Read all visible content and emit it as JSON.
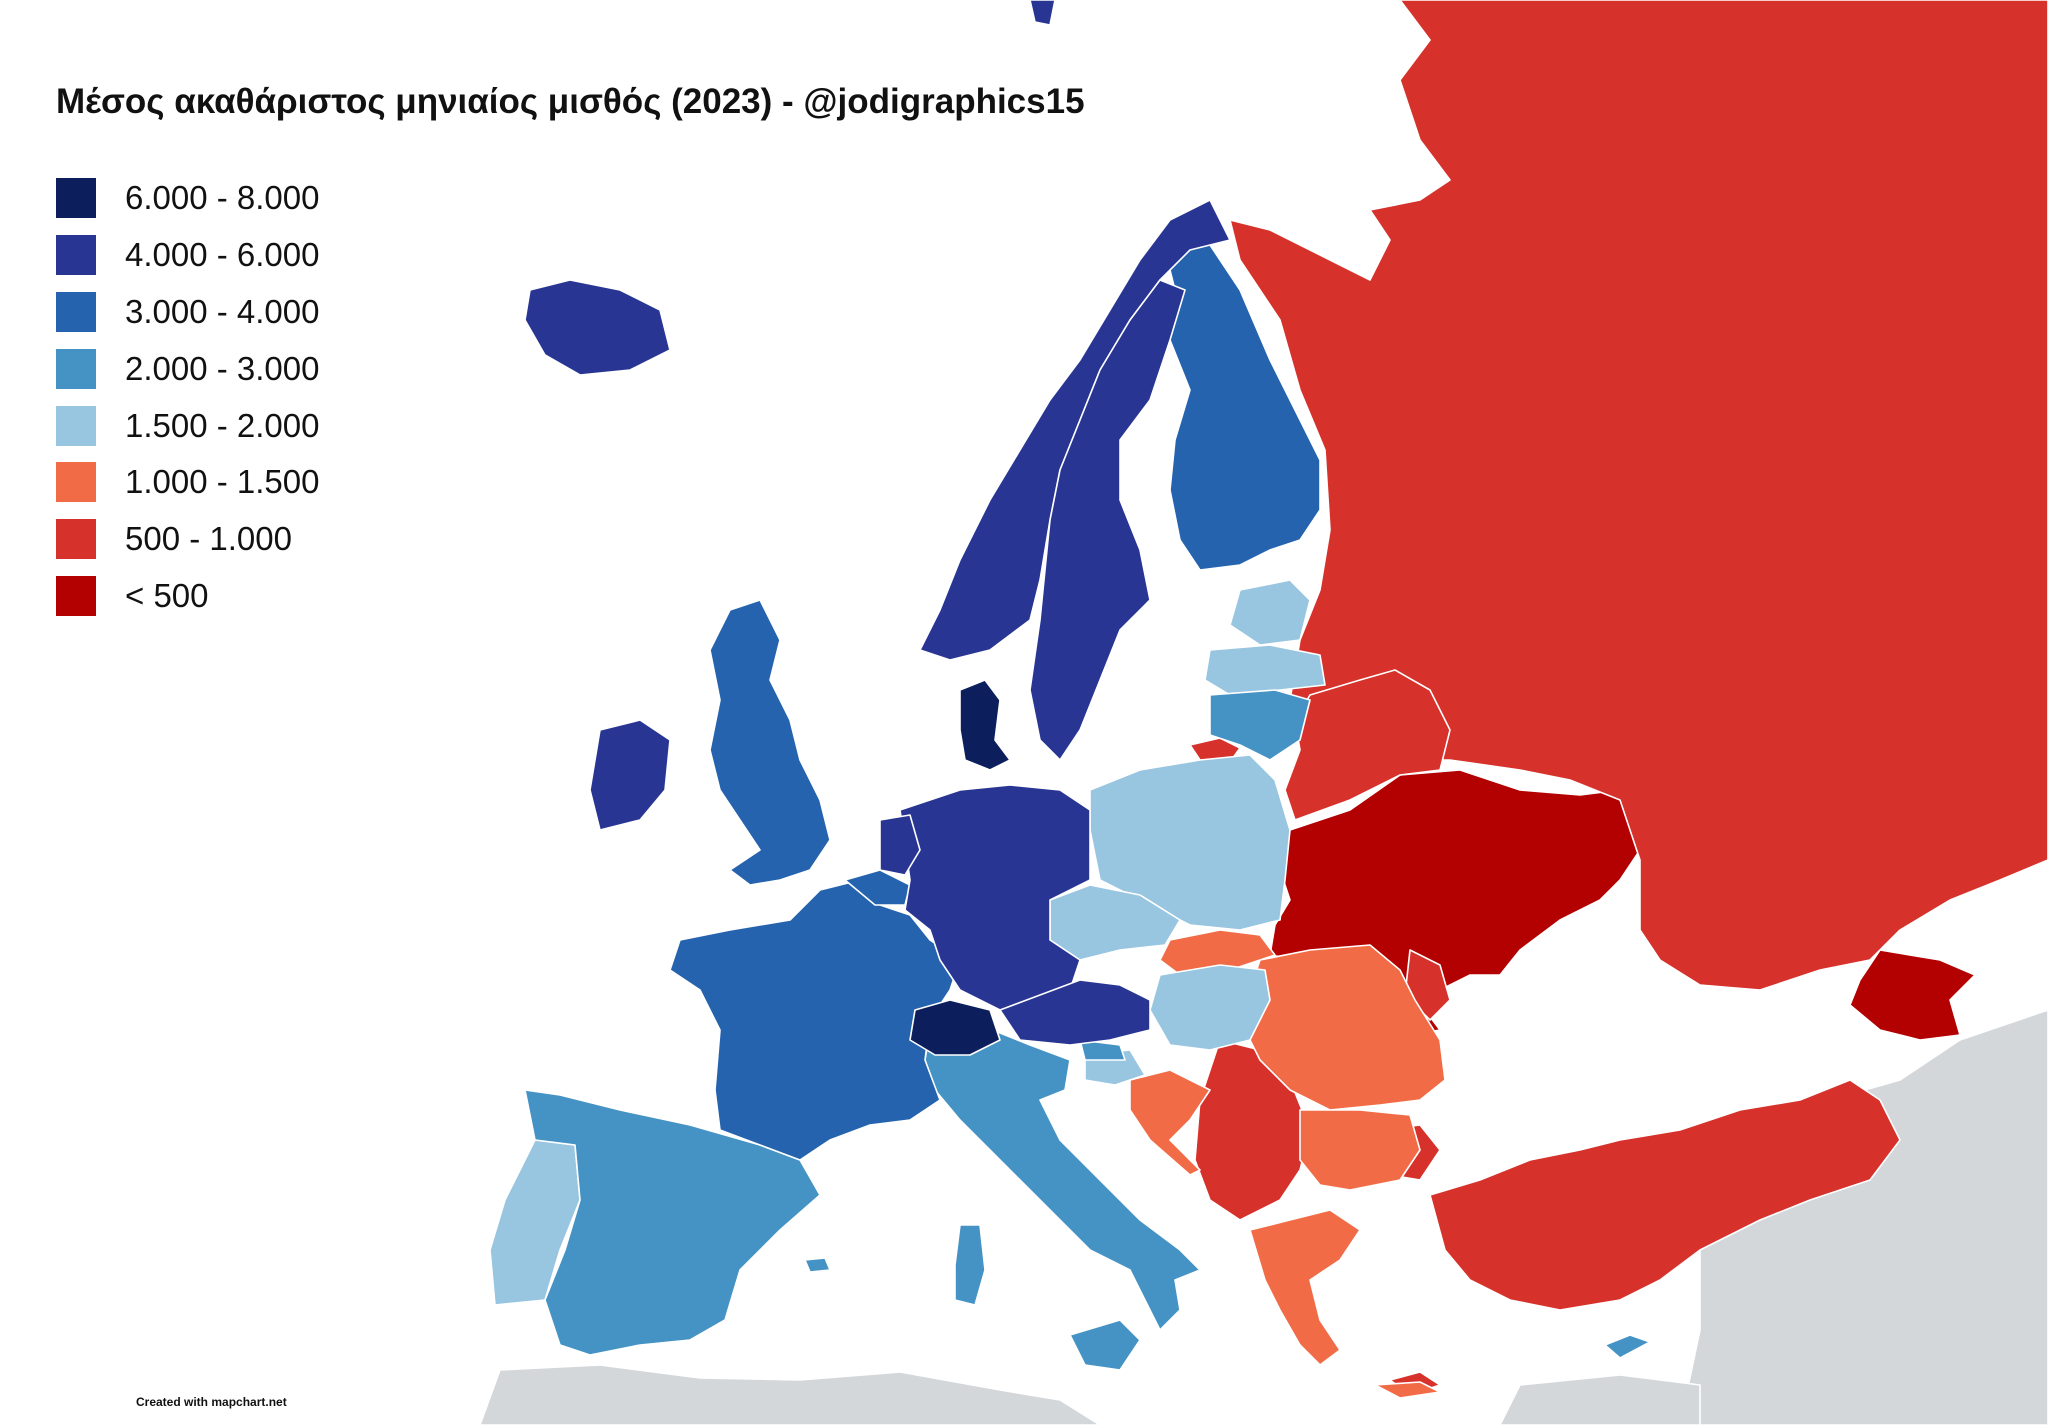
{
  "title": "Μέσος ακαθάριστος μηνιαίος μισθός (2023) - @jodigraphics15",
  "legend": [
    {
      "label": "6.000 - 8.000",
      "color": "#0c1f5c"
    },
    {
      "label": "4.000 - 6.000",
      "color": "#283593"
    },
    {
      "label": "3.000 - 4.000",
      "color": "#2563ae"
    },
    {
      "label": "2.000 - 3.000",
      "color": "#4493c4"
    },
    {
      "label": "1.500 - 2.000",
      "color": "#98c5e0"
    },
    {
      "label": "1.000 - 1.500",
      "color": "#f26b47"
    },
    {
      "label": "500 - 1.000",
      "color": "#d6312b"
    },
    {
      "label": "< 500",
      "color": "#b30000"
    }
  ],
  "credit": "Created with mapchart.net",
  "no_data_color": "#d3d7da"
}
